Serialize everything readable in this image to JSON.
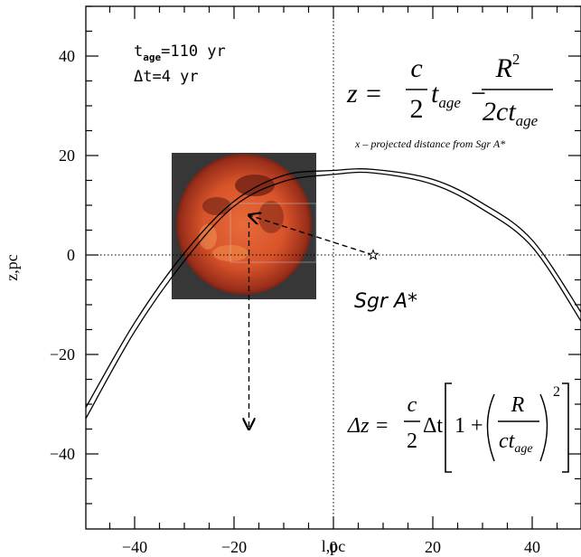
{
  "chart_data": {
    "type": "line",
    "xlabel": "l,pc",
    "ylabel": "z,pc",
    "xlim": [
      -50,
      50
    ],
    "ylim": [
      -50,
      50
    ],
    "x_ticks": [
      -40,
      -20,
      0,
      20,
      40
    ],
    "y_ticks": [
      -40,
      -20,
      0,
      20,
      40
    ],
    "x_tick_labels": [
      "−40",
      "−20",
      "0",
      "20",
      "40"
    ],
    "y_tick_labels": [
      "−40",
      "−20",
      "0",
      "20",
      "40"
    ],
    "grid": false,
    "reference_lines": {
      "x": 0,
      "y": 0,
      "style": "dotted"
    },
    "series": [
      {
        "x": [
          -50,
          -40,
          -30,
          -20,
          -10,
          0,
          8,
          20,
          30,
          40,
          50
        ],
        "y": [
          -31,
          -13.6,
          0.4,
          10.8,
          16,
          17,
          17.2,
          15.2,
          10.4,
          3,
          -11.8
        ]
      },
      {
        "x": [
          -50,
          -40,
          -30,
          -20,
          -10,
          0,
          8,
          20,
          30,
          40,
          50
        ],
        "y": [
          -33.2,
          -15.4,
          -1.2,
          9.8,
          14.8,
          16.2,
          16.5,
          14.2,
          9.2,
          1.6,
          -13.6
        ]
      }
    ],
    "markers": [
      {
        "label": "Sgr A*",
        "x": 8,
        "y": 0,
        "symbol": "star"
      }
    ],
    "arrows": [
      {
        "from": [
          8,
          0
        ],
        "to": [
          -17,
          8
        ]
      },
      {
        "from": [
          -17,
          8
        ],
        "to": [
          -17,
          -35
        ]
      }
    ],
    "annotations": {
      "age_line": {
        "base": "t",
        "sub": "age",
        "rest": "=110 yr"
      },
      "dt_line": "Δt=4 yr",
      "note": "x – projected distance from Sgr A*",
      "sgr_label": "Sgr A*",
      "eq1": {
        "lhs": "z =",
        "c": "c",
        "two": "2",
        "t": "t",
        "age": "age",
        "minus": "−",
        "R": "R",
        "sq": "2",
        "den_prefix": "2ct",
        "den_age": "age"
      },
      "eq2": {
        "lhs": "Δz =",
        "c": "c",
        "two": "2",
        "dt": "Δt",
        "one": "1 +",
        "R": "R",
        "ct": "ct",
        "age": "age",
        "sq": "2"
      }
    },
    "inset": {
      "colors": [
        "#2a2a2a",
        "#8a2a1a",
        "#d8542a",
        "#f08a4a"
      ]
    }
  }
}
